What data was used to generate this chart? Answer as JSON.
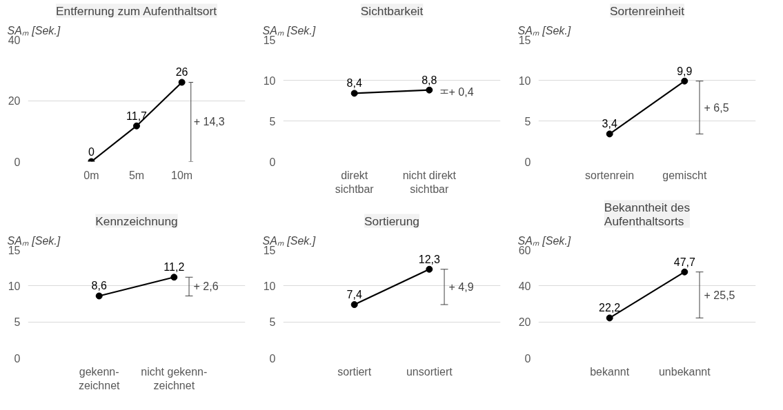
{
  "chart_data": [
    {
      "type": "line",
      "title": "Entfernung zum Aufenthaltsort",
      "ylabel": "SAₘ [Sek.]",
      "categories": [
        "0m",
        "5m",
        "10m"
      ],
      "values": [
        0,
        11.7,
        26
      ],
      "value_labels": [
        "0",
        "11,7",
        "26"
      ],
      "color": "#000000",
      "marker": "circle",
      "ylim": [
        0,
        40
      ],
      "yticks": [
        0,
        20,
        40
      ],
      "grid": "y",
      "annotations": [
        "+ 14,3"
      ]
    },
    {
      "type": "line",
      "title": "Sichtbarkeit",
      "ylabel": "SAₘ [Sek.]",
      "categories": [
        "direkt\nsichtbar",
        "nicht direkt\nsichtbar"
      ],
      "values": [
        8.4,
        8.8
      ],
      "value_labels": [
        "8,4",
        "8,8"
      ],
      "color": "#000000",
      "marker": "circle",
      "ylim": [
        0,
        15
      ],
      "yticks": [
        0,
        5,
        10,
        15
      ],
      "grid": "y",
      "annotations": [
        "+ 0,4"
      ]
    },
    {
      "type": "line",
      "title": "Sortenreinheit",
      "ylabel": "SAₘ [Sek.]",
      "categories": [
        "sortenrein",
        "gemischt"
      ],
      "values": [
        3.4,
        9.9
      ],
      "value_labels": [
        "3,4",
        "9,9"
      ],
      "color": "#000000",
      "marker": "circle",
      "ylim": [
        0,
        15
      ],
      "yticks": [
        0,
        5,
        10,
        15
      ],
      "grid": "y",
      "annotations": [
        "+ 6,5"
      ]
    },
    {
      "type": "line",
      "title": "Kennzeichnung",
      "ylabel": "SAₘ [Sek.]",
      "categories": [
        "gekenn-\nzeichnet",
        "nicht gekenn-\nzeichnet"
      ],
      "values": [
        8.6,
        11.2
      ],
      "value_labels": [
        "8,6",
        "11,2"
      ],
      "color": "#000000",
      "marker": "circle",
      "ylim": [
        0,
        15
      ],
      "yticks": [
        0,
        5,
        10,
        15
      ],
      "grid": "y",
      "annotations": [
        "+ 2,6"
      ]
    },
    {
      "type": "line",
      "title": "Sortierung",
      "ylabel": "SAₘ [Sek.]",
      "categories": [
        "sortiert",
        "unsortiert"
      ],
      "values": [
        7.4,
        12.3
      ],
      "value_labels": [
        "7,4",
        "12,3"
      ],
      "color": "#000000",
      "marker": "circle",
      "ylim": [
        0,
        15
      ],
      "yticks": [
        0,
        5,
        10,
        15
      ],
      "grid": "y",
      "annotations": [
        "+ 4,9"
      ]
    },
    {
      "type": "line",
      "title": "Bekanntheit des\nAufenthaltsorts",
      "ylabel": "SAₘ [Sek.]",
      "categories": [
        "bekannt",
        "unbekannt"
      ],
      "values": [
        22.2,
        47.7
      ],
      "value_labels": [
        "22,2",
        "47,7"
      ],
      "color": "#000000",
      "marker": "circle",
      "ylim": [
        0,
        60
      ],
      "yticks": [
        0,
        20,
        40,
        60
      ],
      "grid": "y",
      "annotations": [
        "+ 25,5"
      ]
    }
  ]
}
